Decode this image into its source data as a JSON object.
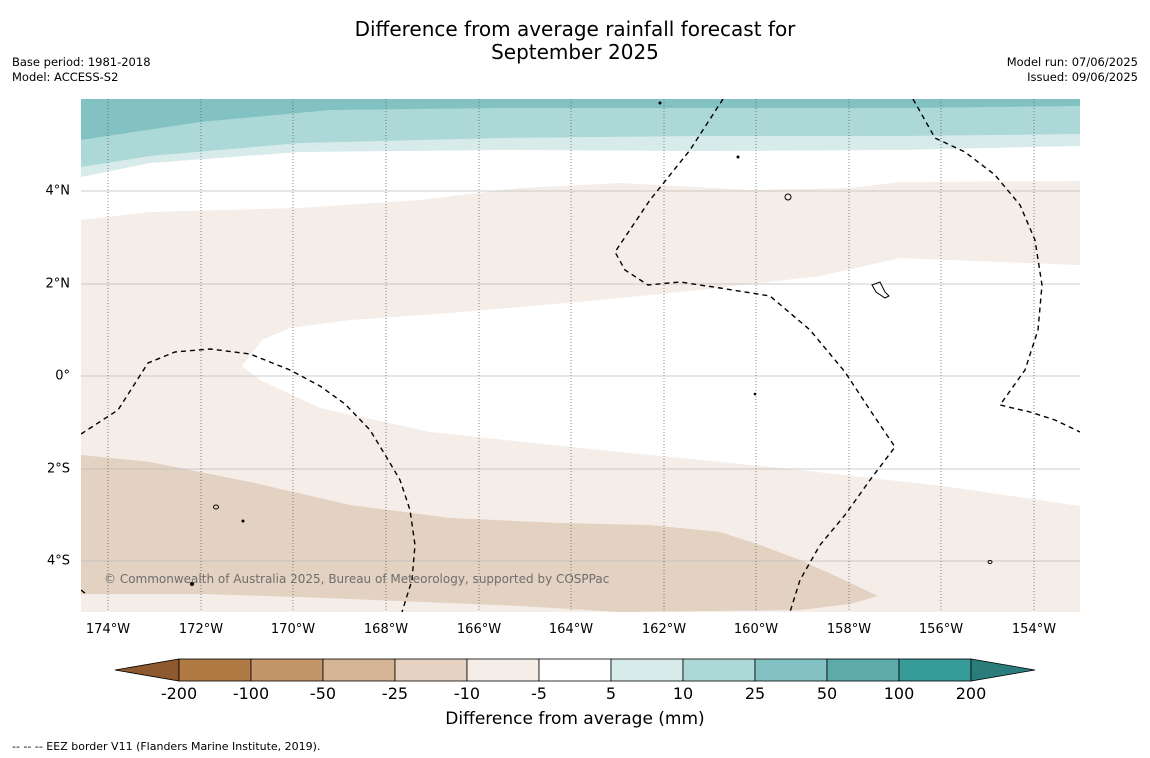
{
  "title_line1": "Difference from average rainfall forecast for",
  "title_line2": "September 2025",
  "meta_left": {
    "base_period": "Base period: 1981-2018",
    "model": "Model: ACCESS-S2"
  },
  "meta_right": {
    "model_run": "Model run: 07/06/2025",
    "issued": "Issued: 09/06/2025"
  },
  "lat_labels": [
    "4°N",
    "2°N",
    "0°",
    "2°S",
    "4°S"
  ],
  "lon_labels": [
    "174°W",
    "172°W",
    "170°W",
    "168°W",
    "166°W",
    "164°W",
    "162°W",
    "160°W",
    "158°W",
    "156°W",
    "154°W"
  ],
  "copyright": "© Commonwealth of Australia 2025, Bureau of Meteorology, supported by COSPPac",
  "colorbar": {
    "ticks": [
      "-200",
      "-100",
      "-50",
      "-25",
      "-10",
      "-5",
      "5",
      "10",
      "25",
      "50",
      "100",
      "200"
    ],
    "colors": [
      "#8c5a2e",
      "#b07a45",
      "#c4946a",
      "#d6b496",
      "#e5d2c2",
      "#f5ede7",
      "#ffffff",
      "#d6ebea",
      "#acd8d8",
      "#82c2c2",
      "#5cabaa",
      "#369a98",
      "#2a7d7b"
    ],
    "label": "Difference from average (mm)"
  },
  "footnote": "--  --  -- EEZ border V11 (Flanders Marine Institute, 2019)."
}
